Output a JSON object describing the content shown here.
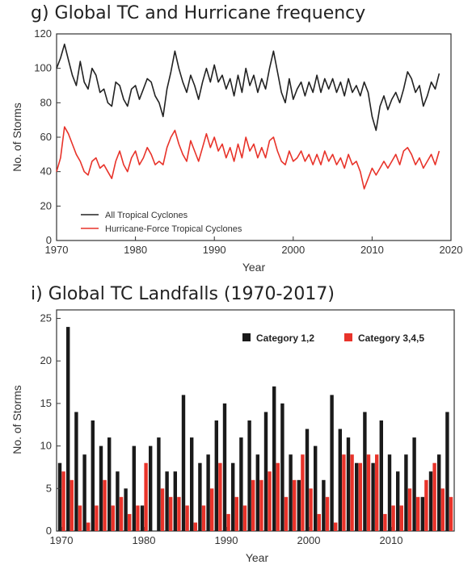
{
  "chart_data": [
    {
      "type": "line",
      "title": "g) Global TC and Hurricane frequency",
      "xlabel": "Year",
      "ylabel": "No. of Storms",
      "xlim": [
        1970,
        2020
      ],
      "ylim": [
        0,
        120
      ],
      "x_ticks": [
        "1970",
        "1980",
        "1990",
        "2000",
        "2010",
        "2020"
      ],
      "y_ticks": [
        "0",
        "20",
        "40",
        "60",
        "80",
        "100",
        "120"
      ],
      "legend_position": "bottom-left",
      "series": [
        {
          "name": "All Tropical Cyclones",
          "color": "#222222",
          "x": [
            1970.0,
            1970.5,
            1971.0,
            1971.5,
            1972.0,
            1972.5,
            1973.0,
            1973.5,
            1974.0,
            1974.5,
            1975.0,
            1975.5,
            1976.0,
            1976.5,
            1977.0,
            1977.5,
            1978.0,
            1978.5,
            1979.0,
            1979.5,
            1980.0,
            1980.5,
            1981.0,
            1981.5,
            1982.0,
            1982.5,
            1983.0,
            1983.5,
            1984.0,
            1984.5,
            1985.0,
            1985.5,
            1986.0,
            1986.5,
            1987.0,
            1987.5,
            1988.0,
            1988.5,
            1989.0,
            1989.5,
            1990.0,
            1990.5,
            1991.0,
            1991.5,
            1992.0,
            1992.5,
            1993.0,
            1993.5,
            1994.0,
            1994.5,
            1995.0,
            1995.5,
            1996.0,
            1996.5,
            1997.0,
            1997.5,
            1998.0,
            1998.5,
            1999.0,
            1999.5,
            2000.0,
            2000.5,
            2001.0,
            2001.5,
            2002.0,
            2002.5,
            2003.0,
            2003.5,
            2004.0,
            2004.5,
            2005.0,
            2005.5,
            2006.0,
            2006.5,
            2007.0,
            2007.5,
            2008.0,
            2008.5,
            2009.0,
            2009.5,
            2010.0,
            2010.5,
            2011.0,
            2011.5,
            2012.0,
            2012.5,
            2013.0,
            2013.5,
            2014.0,
            2014.5,
            2015.0,
            2015.5,
            2016.0,
            2016.5,
            2017.0,
            2017.5,
            2018.0,
            2018.5
          ],
          "values": [
            100,
            106,
            114,
            105,
            96,
            90,
            104,
            92,
            88,
            100,
            96,
            86,
            88,
            80,
            78,
            92,
            90,
            82,
            78,
            88,
            90,
            82,
            88,
            94,
            92,
            84,
            80,
            72,
            88,
            98,
            110,
            100,
            92,
            86,
            96,
            90,
            82,
            92,
            100,
            92,
            102,
            92,
            96,
            88,
            94,
            84,
            96,
            86,
            100,
            90,
            96,
            86,
            94,
            88,
            100,
            110,
            98,
            86,
            80,
            94,
            82,
            88,
            92,
            84,
            92,
            86,
            96,
            86,
            94,
            88,
            94,
            86,
            92,
            84,
            94,
            86,
            90,
            84,
            92,
            86,
            72,
            64,
            78,
            84,
            76,
            82,
            86,
            80,
            88,
            98,
            94,
            86,
            90,
            78,
            84,
            92,
            88,
            97
          ]
        },
        {
          "name": "Hurricane-Force Tropical Cyclones",
          "color": "#e8332a",
          "x": [
            1970.0,
            1970.5,
            1971.0,
            1971.5,
            1972.0,
            1972.5,
            1973.0,
            1973.5,
            1974.0,
            1974.5,
            1975.0,
            1975.5,
            1976.0,
            1976.5,
            1977.0,
            1977.5,
            1978.0,
            1978.5,
            1979.0,
            1979.5,
            1980.0,
            1980.5,
            1981.0,
            1981.5,
            1982.0,
            1982.5,
            1983.0,
            1983.5,
            1984.0,
            1984.5,
            1985.0,
            1985.5,
            1986.0,
            1986.5,
            1987.0,
            1987.5,
            1988.0,
            1988.5,
            1989.0,
            1989.5,
            1990.0,
            1990.5,
            1991.0,
            1991.5,
            1992.0,
            1992.5,
            1993.0,
            1993.5,
            1994.0,
            1994.5,
            1995.0,
            1995.5,
            1996.0,
            1996.5,
            1997.0,
            1997.5,
            1998.0,
            1998.5,
            1999.0,
            1999.5,
            2000.0,
            2000.5,
            2001.0,
            2001.5,
            2002.0,
            2002.5,
            2003.0,
            2003.5,
            2004.0,
            2004.5,
            2005.0,
            2005.5,
            2006.0,
            2006.5,
            2007.0,
            2007.5,
            2008.0,
            2008.5,
            2009.0,
            2009.5,
            2010.0,
            2010.5,
            2011.0,
            2011.5,
            2012.0,
            2012.5,
            2013.0,
            2013.5,
            2014.0,
            2014.5,
            2015.0,
            2015.5,
            2016.0,
            2016.5,
            2017.0,
            2017.5,
            2018.0,
            2018.5
          ],
          "values": [
            40,
            48,
            66,
            62,
            56,
            50,
            46,
            40,
            38,
            46,
            48,
            42,
            44,
            40,
            36,
            46,
            52,
            44,
            40,
            48,
            52,
            44,
            48,
            54,
            50,
            44,
            46,
            44,
            54,
            60,
            64,
            56,
            50,
            46,
            58,
            52,
            46,
            54,
            62,
            54,
            60,
            52,
            56,
            48,
            54,
            46,
            56,
            48,
            60,
            52,
            56,
            48,
            54,
            48,
            58,
            60,
            52,
            46,
            44,
            52,
            46,
            48,
            52,
            46,
            50,
            44,
            50,
            44,
            52,
            46,
            50,
            44,
            48,
            42,
            50,
            44,
            46,
            40,
            30,
            36,
            42,
            38,
            42,
            46,
            42,
            46,
            50,
            44,
            52,
            54,
            50,
            44,
            48,
            42,
            46,
            50,
            44,
            52
          ]
        }
      ]
    },
    {
      "type": "bar",
      "title": "i) Global TC Landfalls (1970-2017)",
      "xlabel": "Year",
      "ylabel": "No. of Storms",
      "ylim": [
        0,
        26
      ],
      "x_ticks": [
        "1970",
        "1980",
        "1990",
        "2000",
        "2010"
      ],
      "y_ticks": [
        "0",
        "5",
        "10",
        "15",
        "20",
        "25"
      ],
      "legend_position": "top-right",
      "categories": [
        1970,
        1971,
        1972,
        1973,
        1974,
        1975,
        1976,
        1977,
        1978,
        1979,
        1980,
        1981,
        1982,
        1983,
        1984,
        1985,
        1986,
        1987,
        1988,
        1989,
        1990,
        1991,
        1992,
        1993,
        1994,
        1995,
        1996,
        1997,
        1998,
        1999,
        2000,
        2001,
        2002,
        2003,
        2004,
        2005,
        2006,
        2007,
        2008,
        2009,
        2010,
        2011,
        2012,
        2013,
        2014,
        2015,
        2016,
        2017
      ],
      "series": [
        {
          "name": "Category 1,2",
          "color": "#1a1a1a",
          "values": [
            8,
            24,
            14,
            9,
            13,
            10,
            11,
            7,
            5,
            10,
            3,
            10,
            11,
            7,
            7,
            16,
            11,
            8,
            9,
            13,
            15,
            8,
            11,
            13,
            9,
            14,
            17,
            15,
            9,
            6,
            12,
            10,
            6,
            16,
            12,
            11,
            8,
            14,
            8,
            13,
            9,
            7,
            9,
            11,
            4,
            7,
            9,
            14
          ]
        },
        {
          "name": "Category 3,4,5",
          "color": "#e8332a",
          "values": [
            7,
            6,
            3,
            1,
            3,
            6,
            3,
            4,
            2,
            3,
            8,
            0,
            5,
            4,
            4,
            3,
            1,
            3,
            5,
            8,
            2,
            4,
            3,
            6,
            6,
            7,
            8,
            4,
            6,
            9,
            5,
            2,
            4,
            1,
            9,
            9,
            8,
            9,
            9,
            2,
            3,
            3,
            5,
            4,
            6,
            8,
            5,
            4
          ]
        }
      ]
    }
  ]
}
